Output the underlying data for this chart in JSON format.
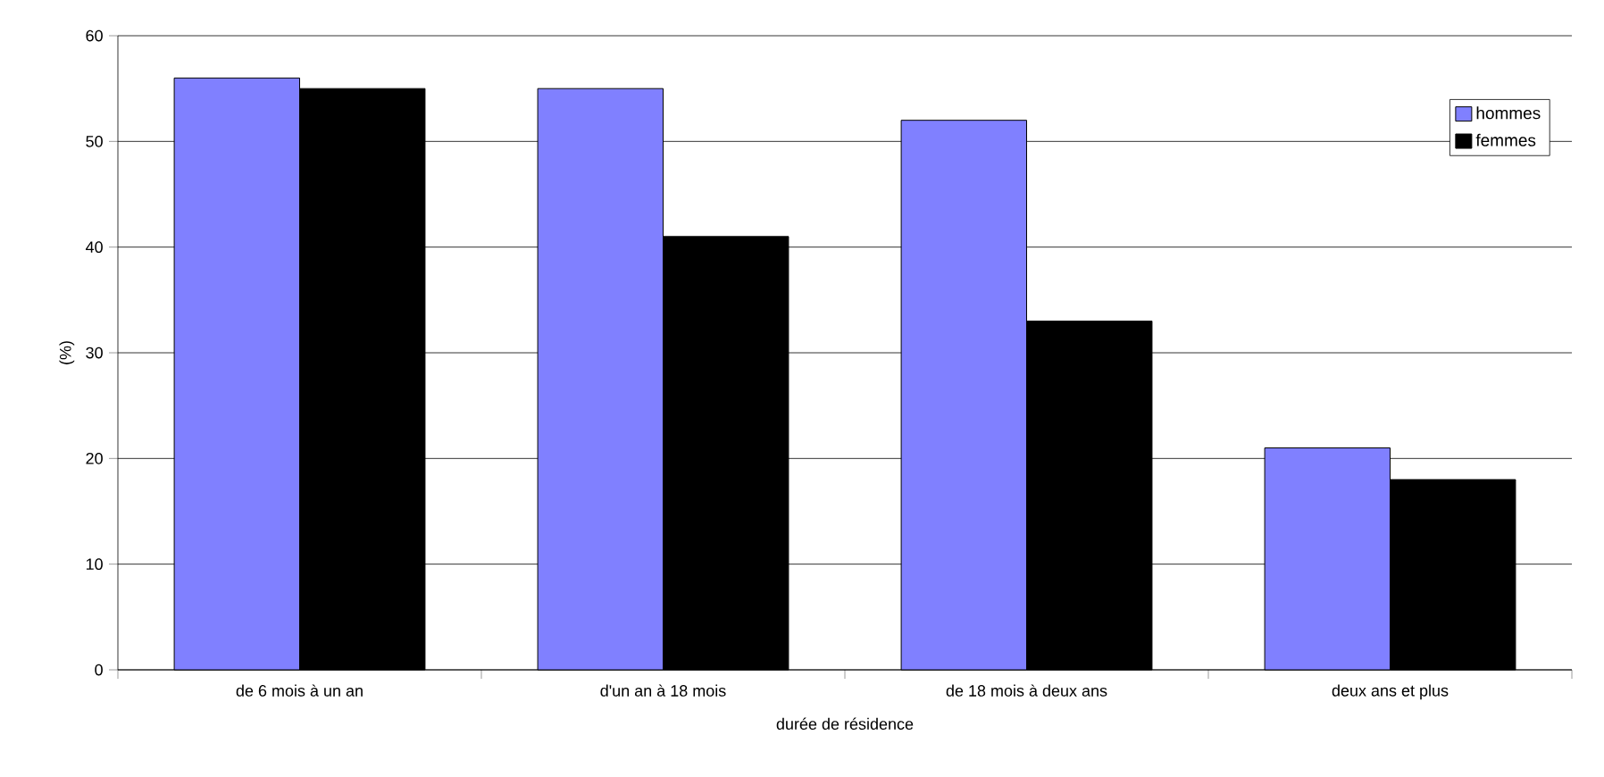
{
  "chart_data": {
    "type": "bar",
    "xlabel": "durée de résidence",
    "ylabel": "(%)",
    "categories": [
      "de 6 mois à un an",
      "d'un an à 18 mois",
      "de 18 mois à deux ans",
      "deux ans et plus"
    ],
    "series": [
      {
        "name": "hommes",
        "color": "#8080ff",
        "values": [
          56,
          55,
          52,
          21
        ]
      },
      {
        "name": "femmes",
        "color": "#000000",
        "values": [
          55,
          41,
          33,
          18
        ]
      }
    ],
    "ylim": [
      0,
      60
    ],
    "yticks": [
      0,
      10,
      20,
      30,
      40,
      50,
      60
    ],
    "grid": "y",
    "legend": "top right"
  }
}
